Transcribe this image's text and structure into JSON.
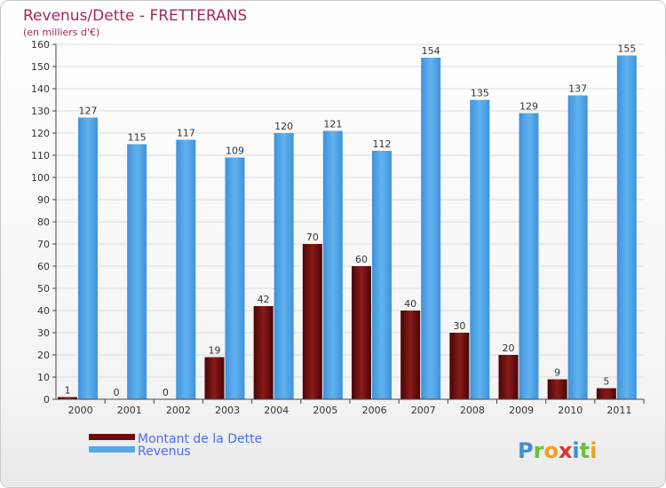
{
  "chart_data": {
    "type": "bar",
    "title": "Revenus/Dette - FRETTERANS",
    "subtitle": "(en milliers d'€)",
    "categories": [
      "2000",
      "2001",
      "2002",
      "2003",
      "2004",
      "2005",
      "2006",
      "2007",
      "2008",
      "2009",
      "2010",
      "2011"
    ],
    "series": [
      {
        "name": "Montant de la Dette",
        "color": "#6e0d0d",
        "values": [
          1,
          0,
          0,
          19,
          42,
          70,
          60,
          40,
          30,
          20,
          9,
          5
        ]
      },
      {
        "name": "Revenus",
        "color": "#55a7e8",
        "values": [
          127,
          115,
          117,
          109,
          120,
          121,
          112,
          154,
          135,
          129,
          137,
          155
        ]
      }
    ],
    "ylim": [
      0,
      160
    ],
    "yticks": [
      0,
      10,
      20,
      30,
      40,
      50,
      60,
      70,
      80,
      90,
      100,
      110,
      120,
      130,
      140,
      150,
      160
    ],
    "grid": true,
    "legend_position": "bottom-left"
  },
  "brand": {
    "text": "Proxiti",
    "letters": [
      "P",
      "r",
      "o",
      "x",
      "i",
      "t",
      "i"
    ],
    "colors": [
      "#3d8fd6",
      "#6cbf3a",
      "#f0a020",
      "#e03030",
      "#3d8fd6",
      "#6cbf3a",
      "#f0a020"
    ]
  }
}
